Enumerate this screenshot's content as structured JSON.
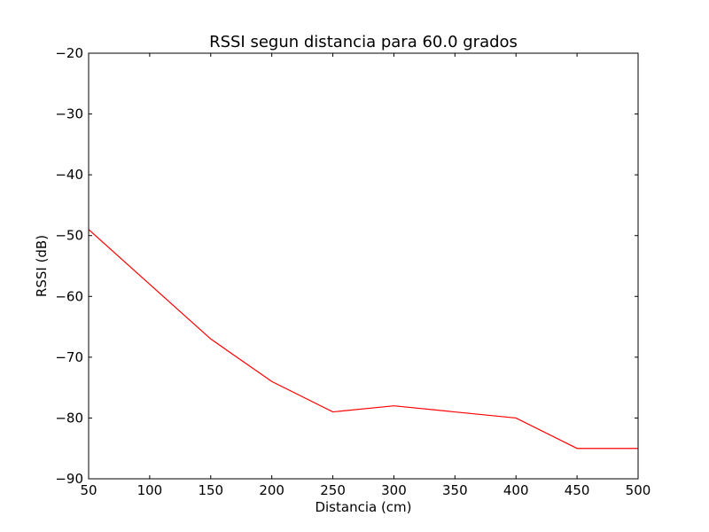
{
  "chart_data": {
    "type": "line",
    "title": "RSSI segun distancia para 60.0 grados",
    "xlabel": "Distancia (cm)",
    "ylabel": "RSSI (dB)",
    "xlim": [
      50,
      500
    ],
    "ylim": [
      -90,
      -20
    ],
    "xticks": [
      50,
      100,
      150,
      200,
      250,
      300,
      350,
      400,
      450,
      500
    ],
    "yticks": [
      -90,
      -80,
      -70,
      -60,
      -50,
      -40,
      -30,
      -20
    ],
    "grid": false,
    "series": [
      {
        "color": "#ff0000",
        "x": [
          50,
          150,
          200,
          250,
          300,
          400,
          450,
          500
        ],
        "y": [
          -49,
          -67,
          -74,
          -79,
          -78,
          -80,
          -85,
          -85
        ]
      }
    ]
  }
}
